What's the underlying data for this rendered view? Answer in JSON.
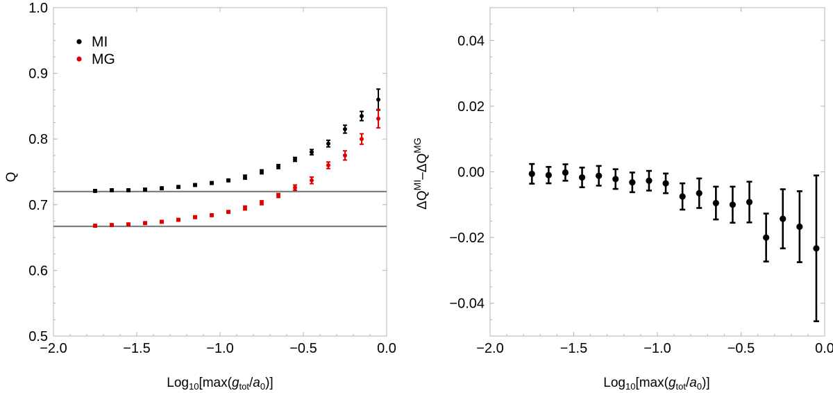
{
  "chart_data": [
    {
      "type": "scatter",
      "panel": "left",
      "title": "",
      "xlabel": {
        "prefix": "Log",
        "base": "10",
        "open": "[max(",
        "var": "g",
        "varsub": "tot",
        "sep": "/",
        "var2": "a",
        "var2sub": "0",
        "close": ")]"
      },
      "ylabel": "Q",
      "xlim": [
        -2.0,
        0.0
      ],
      "ylim": [
        0.5,
        1.0
      ],
      "xticks": [
        -2.0,
        -1.5,
        -1.0,
        -0.5,
        0.0
      ],
      "xtick_labels": [
        "−2.0",
        "−1.5",
        "−1.0",
        "−0.5",
        "0.0"
      ],
      "yticks": [
        0.5,
        0.6,
        0.7,
        0.8,
        0.9,
        1.0
      ],
      "ytick_labels": [
        "0.5",
        "0.6",
        "0.7",
        "0.8",
        "0.9",
        "1.0"
      ],
      "hlines": [
        0.72,
        0.667
      ],
      "hline_color": "#808080",
      "legend_position": "top-left",
      "x": [
        -1.75,
        -1.65,
        -1.55,
        -1.45,
        -1.35,
        -1.25,
        -1.15,
        -1.05,
        -0.95,
        -0.85,
        -0.75,
        -0.65,
        -0.55,
        -0.45,
        -0.35,
        -0.25,
        -0.15,
        -0.05
      ],
      "series": [
        {
          "name": "MI",
          "color": "#000000",
          "values": [
            0.721,
            0.722,
            0.722,
            0.723,
            0.725,
            0.727,
            0.73,
            0.733,
            0.737,
            0.742,
            0.75,
            0.758,
            0.769,
            0.78,
            0.793,
            0.815,
            0.835,
            0.86
          ],
          "errors": [
            0.002,
            0.002,
            0.002,
            0.002,
            0.002,
            0.002,
            0.002,
            0.002,
            0.002,
            0.003,
            0.003,
            0.003,
            0.003,
            0.004,
            0.005,
            0.006,
            0.007,
            0.016
          ]
        },
        {
          "name": "MG",
          "color": "#e00000",
          "values": [
            0.668,
            0.669,
            0.67,
            0.672,
            0.674,
            0.677,
            0.681,
            0.684,
            0.689,
            0.695,
            0.703,
            0.714,
            0.726,
            0.737,
            0.76,
            0.775,
            0.8,
            0.831
          ],
          "errors": [
            0.002,
            0.002,
            0.002,
            0.002,
            0.002,
            0.002,
            0.002,
            0.002,
            0.002,
            0.003,
            0.003,
            0.003,
            0.004,
            0.005,
            0.005,
            0.007,
            0.008,
            0.014
          ]
        }
      ]
    },
    {
      "type": "scatter",
      "panel": "right",
      "title": "",
      "xlabel": {
        "prefix": "Log",
        "base": "10",
        "open": "[max(",
        "var": "g",
        "varsub": "tot",
        "sep": "/",
        "var2": "a",
        "var2sub": "0",
        "close": ")]"
      },
      "ylabel": {
        "d1": "ΔQ",
        "sup1": "MI",
        "dash": "–",
        "d2": "ΔQ",
        "sup2": "MG"
      },
      "xlim": [
        -2.0,
        0.0
      ],
      "ylim": [
        -0.05,
        0.05
      ],
      "xticks": [
        -2.0,
        -1.5,
        -1.0,
        -0.5,
        0.0
      ],
      "xtick_labels": [
        "−2.0",
        "−1.5",
        "−1.0",
        "−0.5",
        "0.0"
      ],
      "yticks": [
        -0.04,
        -0.02,
        0.0,
        0.02,
        0.04
      ],
      "ytick_labels": [
        "−0.04",
        "−0.02",
        "0.00",
        "0.02",
        "0.04"
      ],
      "x": [
        -1.75,
        -1.65,
        -1.55,
        -1.45,
        -1.35,
        -1.25,
        -1.15,
        -1.05,
        -0.95,
        -0.85,
        -0.75,
        -0.65,
        -0.55,
        -0.45,
        -0.35,
        -0.25,
        -0.15,
        -0.05
      ],
      "series": [
        {
          "name": "ΔQ",
          "color": "#000000",
          "values": [
            -0.0006,
            -0.001,
            -0.0002,
            -0.0017,
            -0.0012,
            -0.0022,
            -0.0032,
            -0.0027,
            -0.0035,
            -0.0075,
            -0.0065,
            -0.0095,
            -0.01,
            -0.0092,
            -0.02,
            -0.0143,
            -0.0167,
            -0.0233
          ],
          "errors": [
            0.003,
            0.0025,
            0.0025,
            0.003,
            0.003,
            0.003,
            0.003,
            0.003,
            0.003,
            0.004,
            0.0045,
            0.005,
            0.0055,
            0.0062,
            0.0073,
            0.009,
            0.0108,
            0.0222
          ]
        }
      ]
    }
  ]
}
